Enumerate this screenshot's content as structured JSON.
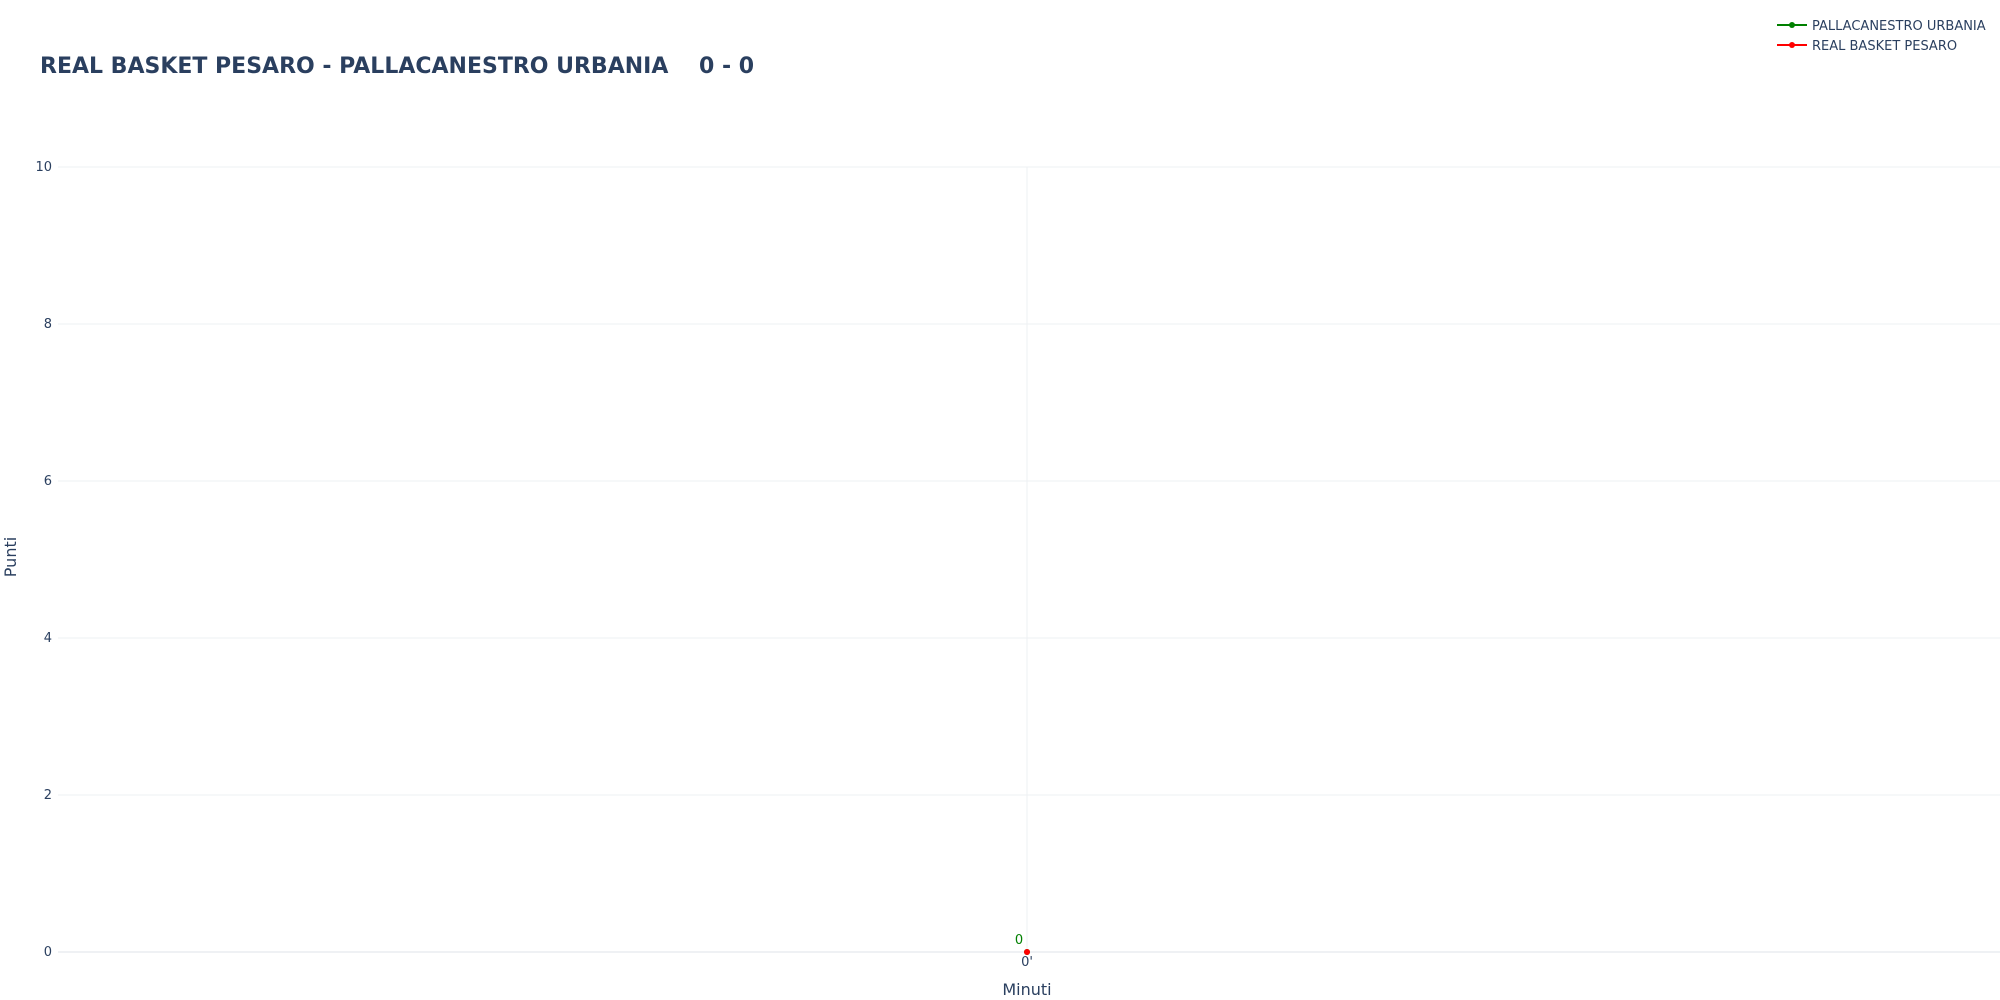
{
  "chart_data": {
    "type": "line",
    "title": "REAL BASKET PESARO - PALLACANESTRO URBANIA    0 - 0",
    "xlabel": "Minuti",
    "ylabel": "Punti",
    "ylim": [
      0,
      10
    ],
    "yticks": [
      0,
      2,
      4,
      6,
      8,
      10
    ],
    "x": [
      "0'"
    ],
    "grid": true,
    "legend_position": "top-right",
    "series": [
      {
        "name": "PALLACANESTRO URBANIA",
        "color": "#008000",
        "values": [
          0
        ],
        "point_labels": [
          "0"
        ]
      },
      {
        "name": "REAL BASKET PESARO",
        "color": "#ff0000",
        "values": [
          0
        ],
        "point_labels": []
      }
    ]
  }
}
